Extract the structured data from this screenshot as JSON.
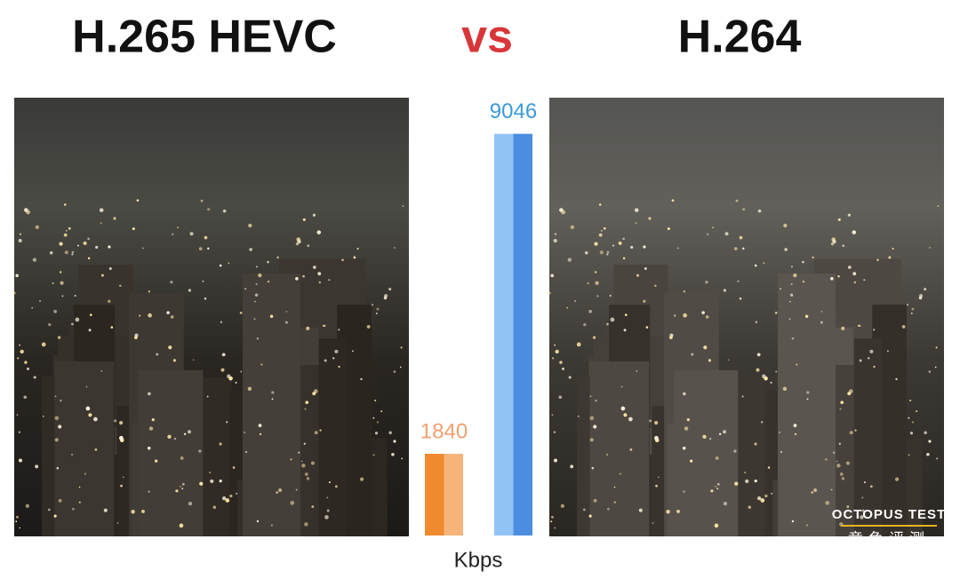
{
  "chart_data": {
    "type": "bar",
    "title": "H.265 HEVC",
    "title_separator": "vs",
    "title_right": "H.264",
    "x_label": "Kbps",
    "categories": [
      null,
      null
    ],
    "values": [
      1840,
      9046
    ],
    "colors": [
      [
        "#ef8a2e",
        "#f5b57a"
      ],
      [
        "#92c3f5",
        "#4b8ee0"
      ]
    ],
    "label_colors": [
      "#f0a070",
      "#3a9ad9"
    ]
  },
  "watermark": {
    "brand": "OCTOPUS TEST",
    "brand_cn": "章鱼评测"
  }
}
